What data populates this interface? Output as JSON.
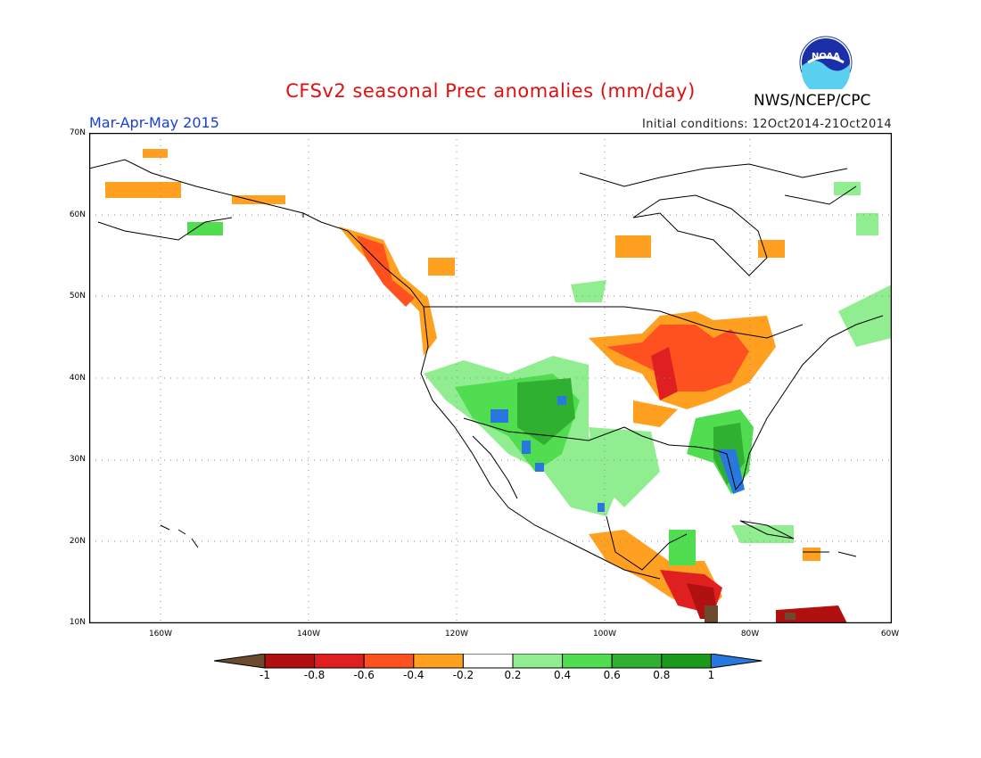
{
  "header": {
    "title": "CFSv2 seasonal Prec anomalies (mm/day)",
    "period": "Mar-Apr-May 2015",
    "initial_conditions": "Initial conditions: 12Oct2014-21Oct2014",
    "agency": "NWS/NCEP/CPC",
    "logo_text": "NOAA"
  },
  "map": {
    "lat_labels": [
      "70N",
      "60N",
      "50N",
      "40N",
      "30N",
      "20N",
      "10N"
    ],
    "lon_labels": [
      "160W",
      "140W",
      "120W",
      "100W",
      "80W",
      "60W"
    ],
    "extent": {
      "lon_min": -172,
      "lon_max": -60,
      "lat_min": 10,
      "lat_max": 70
    }
  },
  "legend": {
    "labels": [
      "-1",
      "-0.8",
      "-0.6",
      "-0.4",
      "-0.2",
      "0.2",
      "0.4",
      "0.6",
      "0.8",
      "1"
    ],
    "colors": [
      "#6b4a2e",
      "#b01010",
      "#e02020",
      "#ff5020",
      "#ffa020",
      "#ffffff",
      "#90ee90",
      "#50dd50",
      "#30b030",
      "#1a9a1a",
      "#2878e0"
    ]
  }
}
